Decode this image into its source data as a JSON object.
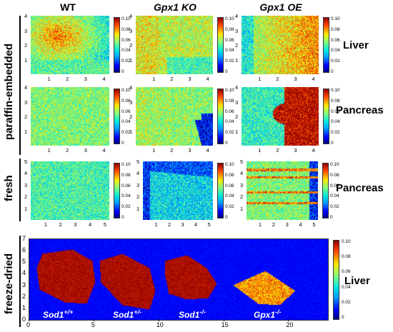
{
  "columns": [
    "WT",
    "Gpx1 KO",
    "Gpx1 OE"
  ],
  "row_groups": [
    "paraffin-embedded",
    "fresh",
    "freeze-dried"
  ],
  "tissue_labels": {
    "row1": "Liver",
    "row2": "Pancreas",
    "row3": "Pancreas",
    "row4": "Liver"
  },
  "colorbar_ticks": [
    "0.10",
    "0.08",
    "0.06",
    "0.04",
    "0.02",
    "0"
  ],
  "axis_ticks_4": [
    "1",
    "2",
    "3",
    "4"
  ],
  "axis_ticks_y4": [
    "4",
    "3",
    "2",
    "1"
  ],
  "axis_ticks_5": [
    "1",
    "2",
    "3",
    "4",
    "5"
  ],
  "axis_ticks_y5": [
    "5",
    "4",
    "3",
    "2",
    "1"
  ],
  "freeze_dried": {
    "samples": [
      {
        "name": "Sod1",
        "genotype": "+/+"
      },
      {
        "name": "Sod1",
        "genotype": "+/-"
      },
      {
        "name": "Sod1",
        "genotype": "-/-"
      },
      {
        "name": "Gpx1",
        "genotype": "-/-"
      }
    ],
    "x_ticks": [
      "0",
      "5",
      "10",
      "15",
      "20"
    ],
    "y_ticks": [
      "7",
      "6",
      "5",
      "4",
      "3",
      "2",
      "1",
      "0"
    ]
  }
}
